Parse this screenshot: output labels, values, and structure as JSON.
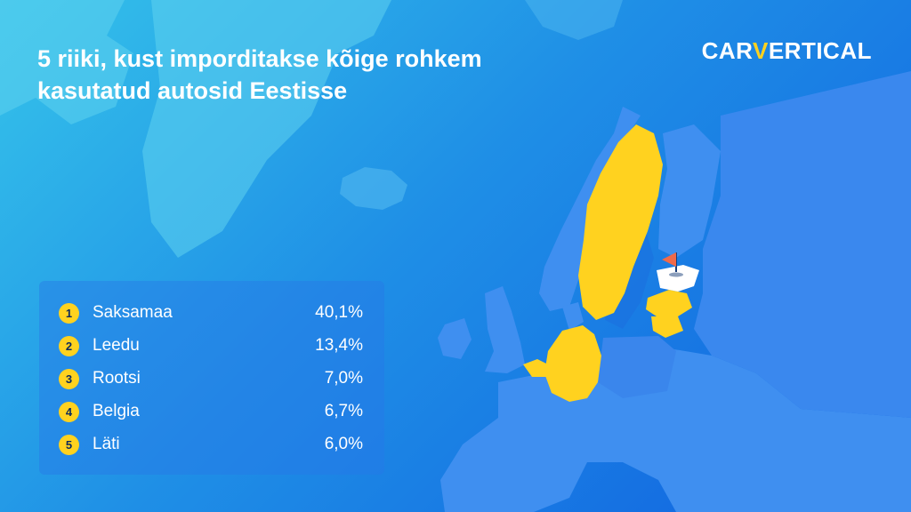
{
  "title": {
    "line1": "5 riiki, kust imporditakse kõige rohkem",
    "line2": "kasutatud autosid Eestisse"
  },
  "logo": {
    "part1": "CAR",
    "accent": "V",
    "part2": "ERTICAL"
  },
  "ranking": [
    {
      "rank": "1",
      "country": "Saksamaa",
      "share": "40,1%"
    },
    {
      "rank": "2",
      "country": "Leedu",
      "share": "13,4%"
    },
    {
      "rank": "3",
      "country": "Rootsi",
      "share": "7,0%"
    },
    {
      "rank": "4",
      "country": "Belgia",
      "share": "6,7%"
    },
    {
      "rank": "5",
      "country": "Läti",
      "share": "6,0%"
    }
  ],
  "map": {
    "highlight_color": "#ffd21f",
    "destination_color": "#ffffff",
    "flag_color": "#f06a4a",
    "land_color": "#3f8ff0",
    "highlighted_countries": [
      "germany",
      "lithuania",
      "sweden",
      "belgium",
      "latvia"
    ],
    "destination": "estonia",
    "marker_icon": "flag-icon"
  }
}
